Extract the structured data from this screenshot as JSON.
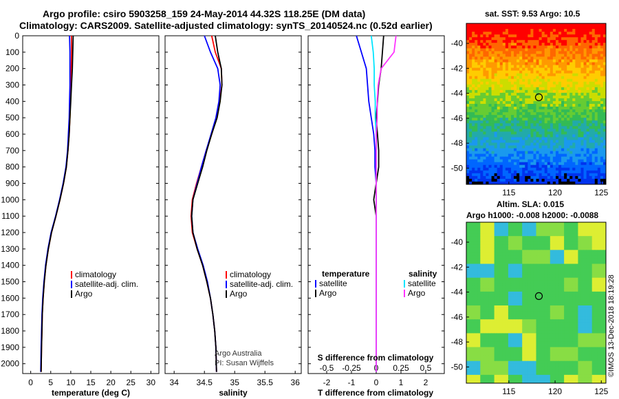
{
  "header": {
    "line1": "Argo profile: csiro 5903258_159 24-May-2014 44.32S 118.25E (DM data)",
    "line2": "Climatology: CARS2009. Satellite-adjusted climatology: synTS_20140524.nc (0.52d earlier)"
  },
  "depth_axis": {
    "ticks": [
      "0",
      "100",
      "200",
      "300",
      "400",
      "500",
      "600",
      "700",
      "800",
      "900",
      "1000",
      "1100",
      "1200",
      "1300",
      "1400",
      "1500",
      "1600",
      "1700",
      "1800",
      "1900",
      "2000"
    ],
    "range": [
      0,
      2060
    ]
  },
  "colors": {
    "climatology": "#ff0000",
    "satellite": "#0000ff",
    "argo": "#000000",
    "sal_satellite": "#00e5ff",
    "sal_argo": "#ff33ff"
  },
  "panels": {
    "temperature": {
      "xlabel": "temperature (deg C)",
      "xticks": [
        "0",
        "5",
        "10",
        "15",
        "20",
        "25",
        "30"
      ],
      "xrange": [
        -2,
        32
      ],
      "legend": [
        "climatology",
        "satellite-adj. clim.",
        "Argo"
      ]
    },
    "salinity": {
      "xlabel": "salinity",
      "xticks": [
        "34",
        "34.5",
        "35",
        "35.5",
        "36"
      ],
      "xrange": [
        33.85,
        36.1
      ],
      "legend": [
        "climatology",
        "satellite-adj. clim.",
        "Argo"
      ],
      "credit1": "Argo Australia",
      "credit2": "PI: Susan Wijffels"
    },
    "difference": {
      "xlabel": "T difference from climatology",
      "top_label": "S difference from climatology",
      "xticks": [
        "-2",
        "-1",
        "0",
        "1",
        "2"
      ],
      "xrange": [
        -2.75,
        2.75
      ],
      "sticks": [
        "-0.5",
        "-0.25",
        "0",
        "0.25",
        "0.5"
      ],
      "legend_t_title": "temperature",
      "legend_s_title": "salinity",
      "legend_t": [
        "satellite",
        "Argo"
      ],
      "legend_s": [
        "satellite",
        "Argo"
      ]
    }
  },
  "maps": {
    "sst": {
      "title": "sat. SST: 9.53  Argo: 10.5"
    },
    "sla": {
      "title1": "Altim. SLA: 0.015",
      "title2": "Argo h1000: -0.008 h2000: -0.0088"
    },
    "lat_ticks": [
      "-40",
      "-42",
      "-44",
      "-46",
      "-48",
      "-50"
    ],
    "lon_ticks": [
      "115",
      "120",
      "125"
    ],
    "lat_range": [
      -51.3,
      -38.4
    ],
    "lon_range": [
      110.4,
      125.5
    ],
    "float_position": {
      "lat": -44.32,
      "lon": 118.25
    }
  },
  "footer_stamp": "©IMOS 13-Dec-2018 18:19:28",
  "chart_data": [
    {
      "type": "line",
      "title": "",
      "xlabel": "temperature (deg C)",
      "ylabel": "",
      "ylim": [
        0,
        2060
      ],
      "series": [
        {
          "name": "climatology",
          "x": [
            10.2,
            10.2,
            10.1,
            10.0,
            9.9,
            9.8,
            9.6,
            9.3,
            8.9,
            8.2,
            7.3,
            6.3,
            5.2,
            4.4,
            3.8,
            3.4,
            3.1,
            2.9,
            2.8,
            2.7,
            2.6
          ],
          "y": [
            0,
            100,
            200,
            300,
            400,
            500,
            600,
            700,
            800,
            900,
            1000,
            1100,
            1200,
            1300,
            1400,
            1500,
            1600,
            1700,
            1800,
            1900,
            2050
          ]
        },
        {
          "name": "satellite-adj. clim.",
          "x": [
            9.7,
            9.8,
            9.8,
            9.8,
            9.7,
            9.6,
            9.4,
            9.2,
            8.8,
            8.1,
            7.2,
            6.2,
            5.1,
            4.3,
            3.7,
            3.3,
            3.0,
            2.8,
            2.7,
            2.6,
            2.5
          ],
          "y": [
            0,
            100,
            200,
            300,
            400,
            500,
            600,
            700,
            800,
            900,
            1000,
            1100,
            1200,
            1300,
            1400,
            1500,
            1600,
            1700,
            1800,
            1900,
            2050
          ]
        },
        {
          "name": "Argo",
          "x": [
            10.6,
            10.5,
            10.4,
            10.2,
            10.0,
            9.8,
            9.6,
            9.3,
            8.9,
            8.2,
            7.3,
            6.3,
            5.2,
            4.4,
            3.8,
            3.4,
            3.1,
            2.9,
            2.8,
            2.7,
            2.6
          ],
          "y": [
            0,
            100,
            200,
            300,
            400,
            500,
            600,
            700,
            800,
            900,
            1000,
            1100,
            1200,
            1300,
            1400,
            1500,
            1600,
            1700,
            1800,
            1900,
            2050
          ]
        }
      ]
    },
    {
      "type": "line",
      "title": "",
      "xlabel": "salinity",
      "ylabel": "",
      "ylim": [
        0,
        2060
      ],
      "series": [
        {
          "name": "climatology",
          "x": [
            34.62,
            34.68,
            34.78,
            34.79,
            34.75,
            34.7,
            34.62,
            34.53,
            34.45,
            34.37,
            34.3,
            34.28,
            34.3,
            34.38,
            34.47,
            34.54,
            34.6,
            34.64,
            34.67,
            34.69,
            34.7
          ],
          "y": [
            0,
            100,
            200,
            300,
            400,
            500,
            600,
            700,
            800,
            900,
            1000,
            1100,
            1200,
            1300,
            1400,
            1500,
            1600,
            1700,
            1800,
            1900,
            2050
          ]
        },
        {
          "name": "satellite-adj. clim.",
          "x": [
            34.5,
            34.6,
            34.72,
            34.76,
            34.74,
            34.69,
            34.61,
            34.53,
            34.45,
            34.38,
            34.31,
            34.29,
            34.31,
            34.39,
            34.48,
            34.55,
            34.6,
            34.64,
            34.67,
            34.69,
            34.7
          ],
          "y": [
            0,
            100,
            200,
            300,
            400,
            500,
            600,
            700,
            800,
            900,
            1000,
            1100,
            1200,
            1300,
            1400,
            1500,
            1600,
            1700,
            1800,
            1900,
            2050
          ]
        },
        {
          "name": "Argo",
          "x": [
            34.68,
            34.72,
            34.78,
            34.79,
            34.76,
            34.71,
            34.62,
            34.54,
            34.47,
            34.39,
            34.31,
            34.29,
            34.31,
            34.38,
            34.47,
            34.54,
            34.6,
            34.64,
            34.67,
            34.69,
            34.7
          ],
          "y": [
            0,
            100,
            200,
            300,
            400,
            500,
            600,
            700,
            800,
            900,
            1000,
            1100,
            1200,
            1300,
            1400,
            1500,
            1600,
            1700,
            1800,
            1900,
            2050
          ]
        }
      ]
    },
    {
      "type": "line",
      "title": "",
      "xlabel": "T difference from climatology",
      "ylabel": "",
      "ylim": [
        0,
        2060
      ],
      "series": [
        {
          "name": "satellite",
          "x": [
            -0.8,
            -0.6,
            -0.4,
            -0.35,
            -0.3,
            -0.2,
            -0.1,
            -0.05,
            -0.05,
            0.0,
            0.0,
            0.0,
            0.0,
            0.0,
            0.0,
            0.0,
            0.0,
            0.0,
            0.0,
            0.0,
            0.0
          ],
          "y": [
            0,
            100,
            200,
            300,
            400,
            500,
            600,
            700,
            800,
            900,
            1000,
            1100,
            1200,
            1300,
            1400,
            1500,
            1600,
            1700,
            1800,
            1900,
            2050
          ]
        },
        {
          "name": "Argo",
          "x": [
            0.3,
            0.25,
            0.2,
            0.1,
            0.05,
            0.0,
            0.05,
            0.1,
            0.1,
            0.0,
            -0.1,
            0.0,
            0.0,
            0.0,
            0.0,
            0.0,
            0.0,
            0.0,
            0.0,
            0.0,
            0.0
          ],
          "y": [
            0,
            100,
            200,
            300,
            400,
            500,
            600,
            700,
            800,
            900,
            1000,
            1100,
            1200,
            1300,
            1400,
            1500,
            1600,
            1700,
            1800,
            1900,
            2050
          ]
        }
      ]
    },
    {
      "type": "line",
      "title": "",
      "xlabel": "S difference from climatology",
      "ylabel": "",
      "ylim": [
        0,
        2060
      ],
      "series": [
        {
          "name": "satellite",
          "x": [
            -0.05,
            -0.03,
            -0.02,
            -0.02,
            -0.01,
            -0.01,
            0.0,
            0.0,
            0.0,
            0.0,
            0.0,
            0.0,
            0.0,
            0.0,
            0.0,
            0.0,
            0.0,
            0.0,
            0.0,
            0.0,
            0.0
          ],
          "y": [
            0,
            100,
            200,
            300,
            400,
            500,
            600,
            700,
            800,
            900,
            1000,
            1100,
            1200,
            1300,
            1400,
            1500,
            1600,
            1700,
            1800,
            1900,
            2050
          ]
        },
        {
          "name": "Argo",
          "x": [
            0.2,
            0.18,
            0.05,
            0.02,
            0.01,
            0.01,
            0.0,
            0.0,
            0.0,
            0.0,
            0.0,
            0.0,
            0.0,
            0.0,
            0.0,
            0.0,
            0.0,
            0.0,
            0.0,
            0.0,
            0.0
          ],
          "y": [
            0,
            100,
            200,
            300,
            400,
            500,
            600,
            700,
            800,
            900,
            1000,
            1100,
            1200,
            1300,
            1400,
            1500,
            1600,
            1700,
            1800,
            1900,
            2050
          ]
        }
      ]
    }
  ]
}
